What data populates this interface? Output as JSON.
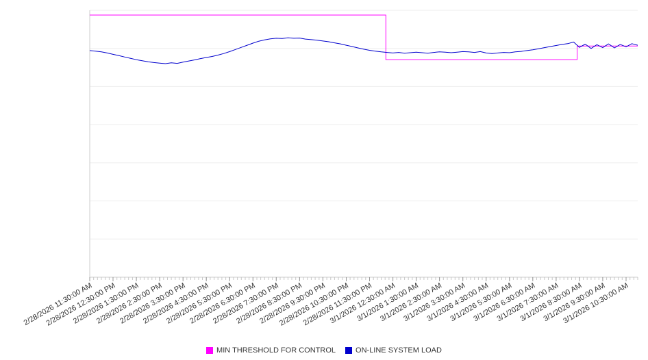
{
  "legend": {
    "items": [
      {
        "label": "MIN THRESHOLD FOR CONTROL",
        "color": "#ff00ff"
      },
      {
        "label": "ON-LINE SYSTEM LOAD",
        "color": "#0000cd"
      }
    ],
    "position": "bottom"
  },
  "chart_data": {
    "type": "line",
    "title": "",
    "xlabel": "",
    "ylabel": "",
    "grid": true,
    "gridline_count": 8,
    "xlim_hours": [
      0,
      23.5
    ],
    "ylim": [
      0,
      100
    ],
    "x_labels": [
      "2/28/2026 11:30:00 AM",
      "2/28/2026 12:30:00 PM",
      "2/28/2026 1:30:00 PM",
      "2/28/2026 2:30:00 PM",
      "2/28/2026 3:30:00 PM",
      "2/28/2026 4:30:00 PM",
      "2/28/2026 5:30:00 PM",
      "2/28/2026 6:30:00 PM",
      "2/28/2026 7:30:00 PM",
      "2/28/2026 8:30:00 PM",
      "2/28/2026 9:30:00 PM",
      "2/28/2026 10:30:00 PM",
      "2/28/2026 11:30:00 PM",
      "3/1/2026 12:30:00 AM",
      "3/1/2026 1:30:00 AM",
      "3/1/2026 2:30:00 AM",
      "3/1/2026 3:30:00 AM",
      "3/1/2026 4:30:00 AM",
      "3/1/2026 5:30:00 AM",
      "3/1/2026 6:30:00 AM",
      "3/1/2026 7:30:00 AM",
      "3/1/2026 8:30:00 AM",
      "3/1/2026 9:30:00 AM",
      "3/1/2026 10:30:00 AM"
    ],
    "series": [
      {
        "name": "MIN THRESHOLD FOR CONTROL",
        "color": "#ff00ff",
        "points": [
          [
            0,
            98.2
          ],
          [
            12.7,
            98.2
          ],
          [
            12.7,
            81.5
          ],
          [
            20.9,
            81.5
          ],
          [
            20.9,
            86.6
          ],
          [
            23.5,
            86.6
          ]
        ]
      },
      {
        "name": "ON-LINE SYSTEM LOAD",
        "color": "#0000cd",
        "step_hours": 0.25,
        "values": [
          84.9,
          84.7,
          84.4,
          84.0,
          83.5,
          83.0,
          82.5,
          82.0,
          81.5,
          81.1,
          80.7,
          80.4,
          80.2,
          80.0,
          80.3,
          80.1,
          80.6,
          81.0,
          81.4,
          81.9,
          82.3,
          82.7,
          83.2,
          83.8,
          84.5,
          85.3,
          86.1,
          86.9,
          87.7,
          88.4,
          88.9,
          89.3,
          89.5,
          89.4,
          89.7,
          89.5,
          89.6,
          89.2,
          89.0,
          88.8,
          88.5,
          88.2,
          87.8,
          87.4,
          86.9,
          86.4,
          85.9,
          85.4,
          85.0,
          84.7,
          84.4,
          84.2,
          84.0,
          84.2,
          83.9,
          84.1,
          84.3,
          84.1,
          83.9,
          84.2,
          84.4,
          84.3,
          84.1,
          84.3,
          84.5,
          84.4,
          84.2,
          84.5,
          84.0,
          83.8,
          84.0,
          84.2,
          84.1,
          84.4,
          84.6,
          84.9,
          85.2,
          85.6,
          86.0,
          86.4,
          86.8,
          87.2,
          87.5,
          88.1,
          86.1,
          87.3,
          85.7,
          87.1,
          86.0,
          87.4,
          85.9,
          87.2,
          86.3,
          87.5,
          86.9
        ]
      }
    ]
  },
  "colors": {
    "gridline": "#eeeeee",
    "axis": "#cccccc",
    "major_tick": "#999999",
    "minor_tick": "#c8c8c8",
    "label_text": "#333333",
    "background": "#ffffff"
  }
}
